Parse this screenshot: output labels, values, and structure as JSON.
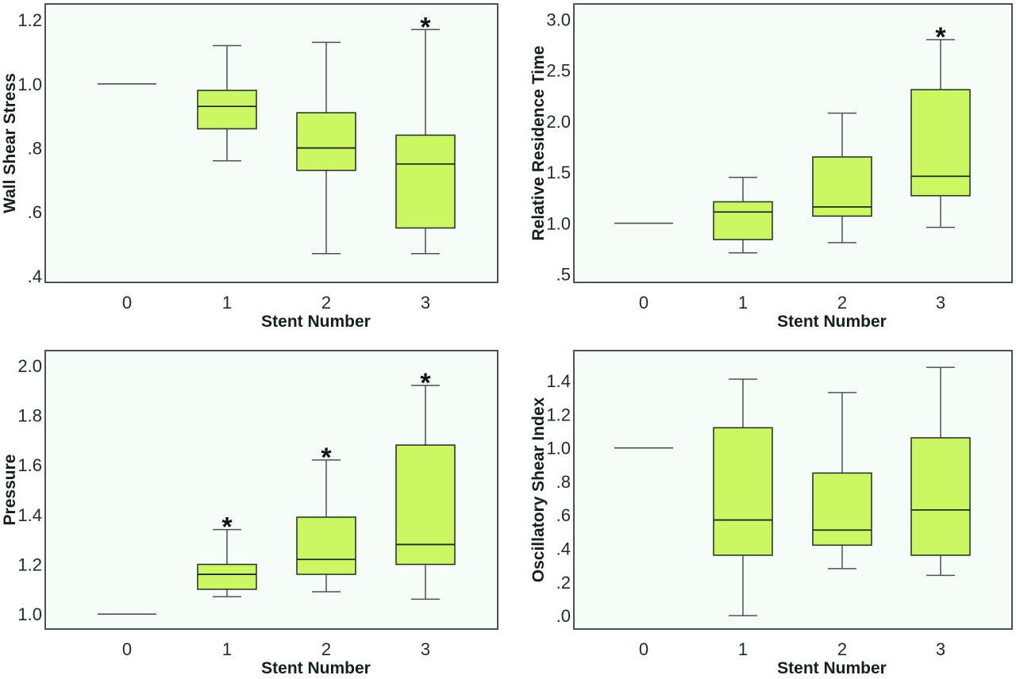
{
  "chart_data": [
    {
      "type": "box",
      "panel": "top-left",
      "title": "",
      "xlabel": "Stent Number",
      "ylabel": "Wall Shear Stress",
      "ylim": [
        0.38,
        1.25
      ],
      "yticks": [
        0.4,
        0.6,
        0.8,
        1.0,
        1.2
      ],
      "ytick_labels": [
        ".4",
        ".6",
        ".8",
        "1.0",
        "1.2"
      ],
      "categories": [
        "0",
        "1",
        "2",
        "3"
      ],
      "grid": false,
      "series": [
        {
          "category": "0",
          "reference_line": 1.0
        },
        {
          "category": "1",
          "whisker_low": 0.76,
          "q1": 0.86,
          "median": 0.93,
          "q3": 0.98,
          "whisker_high": 1.12,
          "significant": false
        },
        {
          "category": "2",
          "whisker_low": 0.47,
          "q1": 0.73,
          "median": 0.8,
          "q3": 0.91,
          "whisker_high": 1.13,
          "significant": false
        },
        {
          "category": "3",
          "whisker_low": 0.47,
          "q1": 0.55,
          "median": 0.75,
          "q3": 0.84,
          "whisker_high": 1.17,
          "significant": true
        }
      ],
      "significance_marker": "*"
    },
    {
      "type": "box",
      "panel": "top-right",
      "title": "",
      "xlabel": "Stent Number",
      "ylabel": "Relative Residence Time",
      "ylim": [
        0.42,
        3.15
      ],
      "yticks": [
        0.5,
        1.0,
        1.5,
        2.0,
        2.5,
        3.0
      ],
      "ytick_labels": [
        ".5",
        "1.0",
        "1.5",
        "2.0",
        "2.5",
        "3.0"
      ],
      "categories": [
        "0",
        "1",
        "2",
        "3"
      ],
      "grid": false,
      "series": [
        {
          "category": "0",
          "reference_line": 1.0
        },
        {
          "category": "1",
          "whisker_low": 0.71,
          "q1": 0.84,
          "median": 1.11,
          "q3": 1.21,
          "whisker_high": 1.45,
          "significant": false
        },
        {
          "category": "2",
          "whisker_low": 0.81,
          "q1": 1.07,
          "median": 1.16,
          "q3": 1.65,
          "whisker_high": 2.08,
          "significant": false
        },
        {
          "category": "3",
          "whisker_low": 0.96,
          "q1": 1.27,
          "median": 1.46,
          "q3": 2.31,
          "whisker_high": 2.8,
          "significant": true
        }
      ],
      "significance_marker": "*"
    },
    {
      "type": "box",
      "panel": "bottom-left",
      "title": "",
      "xlabel": "Stent Number",
      "ylabel": "Pressure",
      "ylim": [
        0.94,
        2.06
      ],
      "yticks": [
        1.0,
        1.2,
        1.4,
        1.6,
        1.8,
        2.0
      ],
      "ytick_labels": [
        "1.0",
        "1.2",
        "1.4",
        "1.6",
        "1.8",
        "2.0"
      ],
      "categories": [
        "0",
        "1",
        "2",
        "3"
      ],
      "grid": false,
      "series": [
        {
          "category": "0",
          "reference_line": 1.0
        },
        {
          "category": "1",
          "whisker_low": 1.07,
          "q1": 1.1,
          "median": 1.16,
          "q3": 1.2,
          "whisker_high": 1.34,
          "significant": true
        },
        {
          "category": "2",
          "whisker_low": 1.09,
          "q1": 1.16,
          "median": 1.22,
          "q3": 1.39,
          "whisker_high": 1.62,
          "significant": true
        },
        {
          "category": "3",
          "whisker_low": 1.06,
          "q1": 1.2,
          "median": 1.28,
          "q3": 1.68,
          "whisker_high": 1.92,
          "significant": true
        }
      ],
      "significance_marker": "*"
    },
    {
      "type": "box",
      "panel": "bottom-right",
      "title": "",
      "xlabel": "Stent Number",
      "ylabel": "Oscillatory Shear Index",
      "ylim": [
        -0.08,
        1.58
      ],
      "yticks": [
        0.0,
        0.2,
        0.4,
        0.6,
        0.8,
        1.0,
        1.2,
        1.4
      ],
      "ytick_labels": [
        ".0",
        ".2",
        ".4",
        ".6",
        ".8",
        "1.0",
        "1.2",
        "1.4"
      ],
      "categories": [
        "0",
        "1",
        "2",
        "3"
      ],
      "grid": false,
      "series": [
        {
          "category": "0",
          "reference_line": 1.0
        },
        {
          "category": "1",
          "whisker_low": 0.0,
          "q1": 0.36,
          "median": 0.57,
          "q3": 1.12,
          "whisker_high": 1.41,
          "significant": false
        },
        {
          "category": "2",
          "whisker_low": 0.28,
          "q1": 0.42,
          "median": 0.51,
          "q3": 0.85,
          "whisker_high": 1.33,
          "significant": false
        },
        {
          "category": "3",
          "whisker_low": 0.24,
          "q1": 0.36,
          "median": 0.63,
          "q3": 1.06,
          "whisker_high": 1.48,
          "significant": false
        }
      ],
      "significance_marker": "*"
    }
  ],
  "colors": {
    "box_fill": "#cbf763",
    "plot_background": "#f6fcf8",
    "frame": "#4a5552"
  }
}
